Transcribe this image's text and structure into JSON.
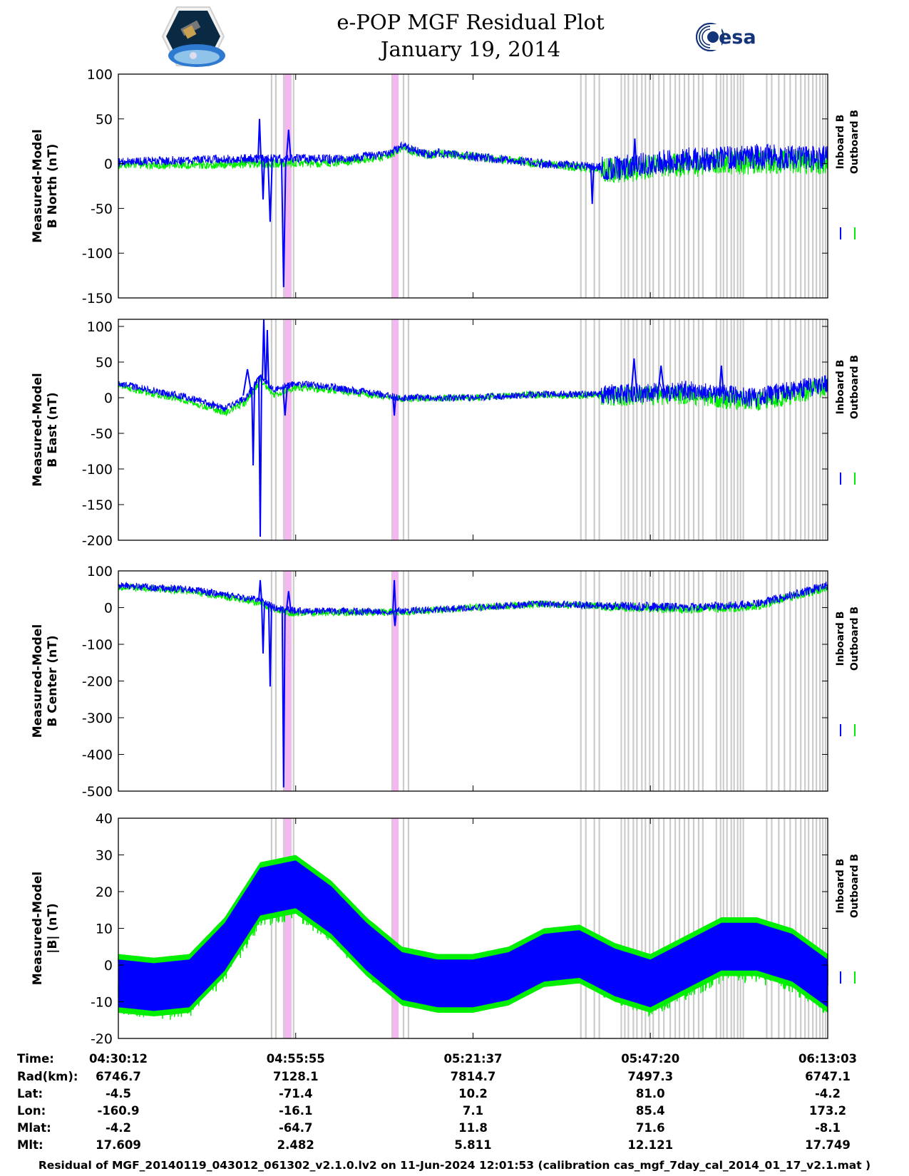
{
  "title": "e-POP MGF Residual Plot",
  "date": "January 19, 2014",
  "logos": {
    "left": "cassiope-logo",
    "right_text": "esa"
  },
  "colors": {
    "inboard": "#0000ff",
    "outboard": "#00ee00",
    "gray_band": "#cccccc",
    "pink_band": "#f4b8f0",
    "gray_pink": "#dcc8dc"
  },
  "legend": {
    "inboard": "Inboard B",
    "outboard": "Outboard B"
  },
  "chart_data": [
    {
      "type": "line",
      "ylabel": [
        "Measured-Model",
        "B North (nT)"
      ],
      "ylim": [
        -150,
        100
      ],
      "yticks": [
        100,
        50,
        0,
        -50,
        -100,
        -150
      ],
      "series": [
        {
          "name": "Inboard B",
          "color": "#0000ff",
          "x": [
            0,
            0.1,
            0.2,
            0.3,
            0.35,
            0.38,
            0.39,
            0.4,
            0.42,
            0.44,
            0.45,
            0.5,
            0.6,
            0.7,
            0.75,
            0.8,
            0.9,
            1
          ],
          "y": [
            2,
            4,
            6,
            5,
            8,
            10,
            15,
            20,
            14,
            10,
            12,
            8,
            0,
            -5,
            0,
            4,
            8,
            6
          ]
        },
        {
          "name": "Outboard B",
          "color": "#00ee00",
          "x": [
            0,
            0.5,
            1
          ],
          "y": [
            -5,
            -5,
            -8
          ]
        }
      ]
    },
    {
      "type": "line",
      "ylabel": [
        "Measured-Model",
        "B East (nT)"
      ],
      "ylim": [
        -200,
        110
      ],
      "yticks": [
        100,
        50,
        0,
        -50,
        -100,
        -150,
        -200
      ],
      "series": [
        {
          "name": "Inboard B",
          "color": "#0000ff",
          "x": [
            0,
            0.1,
            0.15,
            0.18,
            0.2,
            0.22,
            0.25,
            0.3,
            0.4,
            0.5,
            0.6,
            0.7,
            0.8,
            0.9,
            1
          ],
          "y": [
            20,
            0,
            -15,
            0,
            30,
            10,
            20,
            15,
            0,
            0,
            5,
            5,
            10,
            0,
            20
          ]
        },
        {
          "name": "Outboard B",
          "color": "#00ee00",
          "x": [
            0,
            1
          ],
          "y": [
            20,
            20
          ]
        }
      ]
    },
    {
      "type": "line",
      "ylabel": [
        "Measured-Model",
        "B Center (nT)"
      ],
      "ylim": [
        -500,
        100
      ],
      "yticks": [
        100,
        0,
        -100,
        -200,
        -300,
        -400,
        -500
      ],
      "series": [
        {
          "name": "Inboard B",
          "color": "#0000ff",
          "x": [
            0,
            0.1,
            0.2,
            0.22,
            0.25,
            0.3,
            0.4,
            0.5,
            0.6,
            0.7,
            0.8,
            0.9,
            1
          ],
          "y": [
            60,
            50,
            20,
            0,
            -10,
            -10,
            -10,
            0,
            10,
            5,
            0,
            10,
            60
          ]
        },
        {
          "name": "Outboard B",
          "color": "#00ee00",
          "x": [
            0,
            1
          ],
          "y": [
            55,
            55
          ]
        }
      ]
    },
    {
      "type": "line",
      "ylabel": [
        "Measured-Model",
        "|B| (nT)"
      ],
      "ylim": [
        -20,
        40
      ],
      "yticks": [
        40,
        30,
        20,
        10,
        0,
        -10,
        -20
      ],
      "series": [
        {
          "name": "Inboard B",
          "color": "#0000ff",
          "x": [
            0,
            0.05,
            0.1,
            0.15,
            0.2,
            0.25,
            0.3,
            0.35,
            0.4,
            0.45,
            0.5,
            0.55,
            0.6,
            0.65,
            0.7,
            0.75,
            0.8,
            0.85,
            0.9,
            0.95,
            1
          ],
          "y": [
            -5,
            -6,
            -5,
            5,
            20,
            22,
            15,
            5,
            -3,
            -5,
            -5,
            -3,
            2,
            3,
            -2,
            -5,
            0,
            5,
            5,
            2,
            -5
          ]
        },
        {
          "name": "Outboard B",
          "color": "#00ee00",
          "x": [
            0,
            0.5,
            1
          ],
          "y": [
            -8,
            -6,
            -8
          ]
        }
      ]
    }
  ],
  "xticks": [
    "04:30:12",
    "04:55:55",
    "05:21:37",
    "05:47:20",
    "06:13:03"
  ],
  "orbit_table": {
    "labels": [
      "Time:",
      "Rad(km):",
      "Lat:",
      "Lon:",
      "Mlat:",
      "Mlt:"
    ],
    "columns": [
      [
        "04:30:12",
        "6746.7",
        "-4.5",
        "-160.9",
        "-4.2",
        "17.609"
      ],
      [
        "04:55:55",
        "7128.1",
        "-71.4",
        "-16.1",
        "-64.7",
        "2.482"
      ],
      [
        "05:21:37",
        "7814.7",
        "10.2",
        "7.1",
        "11.8",
        "5.811"
      ],
      [
        "05:47:20",
        "7497.3",
        "81.0",
        "85.4",
        "71.6",
        "12.121"
      ],
      [
        "06:13:03",
        "6747.1",
        "-4.2",
        "173.2",
        "-8.1",
        "17.749"
      ]
    ]
  },
  "footer": "Residual of MGF_20140119_043012_061302_v2.1.0.lv2 on 11-Jun-2024 12:01:53 (calibration cas_mgf_7day_cal_2014_01_17_v2.1.mat )"
}
